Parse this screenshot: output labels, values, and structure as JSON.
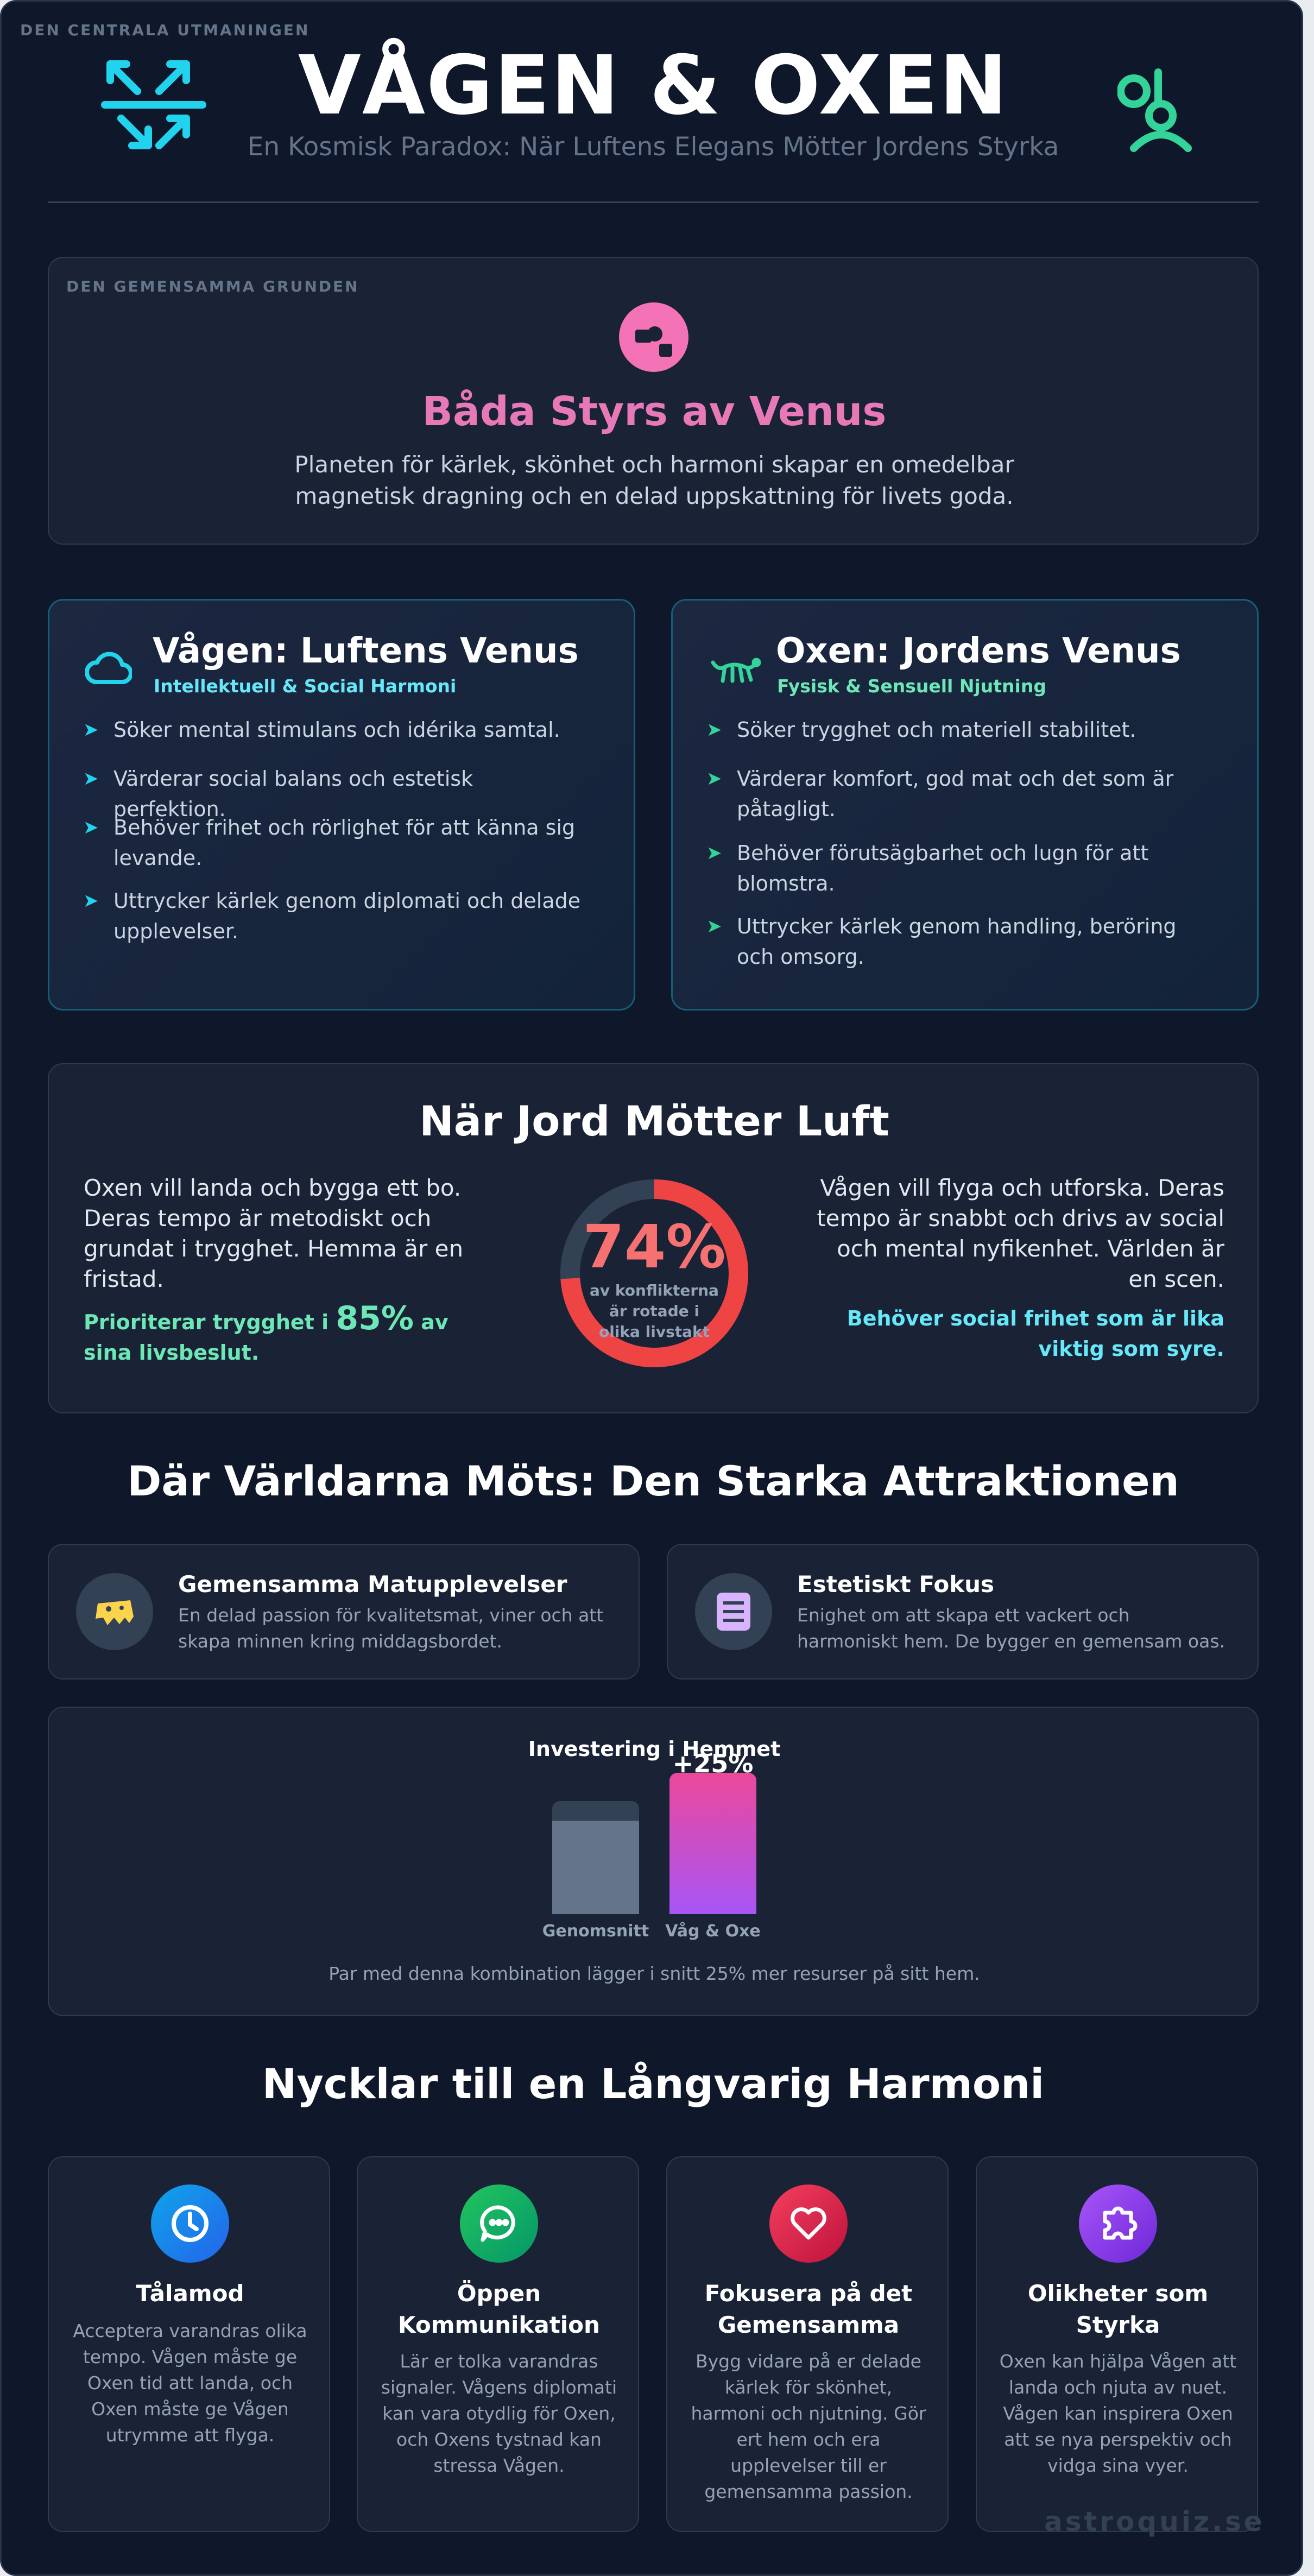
{
  "header": {
    "corner_label": "DEN CENTRALA UTMANINGEN",
    "title": "VÅGEN & OXEN",
    "subtitle": "En Kosmisk Paradox: När Luftens Elegans Mötter Jordens Styrka",
    "left_icon": "air-arrows-icon",
    "right_icon": "venus-ox-icon"
  },
  "common_ground": {
    "label": "DEN GEMENSAMMA GRUNDEN",
    "icon": "venus-icon",
    "title": "Båda Styrs av Venus",
    "text": "Planeten för kärlek, skönhet och harmoni skapar en omedelbar magnetisk dragning och en delad uppskattning för livets goda."
  },
  "libra": {
    "icon": "cloud-icon",
    "name": "Vågen: Luftens Venus",
    "sub": "Intellektuell & Social Harmoni",
    "bullets": [
      "Söker mental stimulans och idérika samtal.",
      "Värderar social balans och estetisk perfektion.",
      "Behöver frihet och rörlighet för att känna sig levande.",
      "Uttrycker kärlek genom diplomati och delade upplevelser."
    ]
  },
  "taurus": {
    "icon": "ox-icon",
    "name": "Oxen: Jordens Venus",
    "sub": "Fysisk & Sensuell Njutning",
    "bullets": [
      "Söker trygghet och materiell stabilitet.",
      "Värderar komfort, god mat och det som är påtagligt.",
      "Behöver förutsägbarhet och lugn för att blomstra.",
      "Uttrycker kärlek genom handling, beröring och omsorg."
    ]
  },
  "conflict": {
    "title": "När Jord Mötter Luft",
    "left_text": "Oxen vill landa och bygga ett bo. Deras tempo är metodiskt och grundat i trygghet. Hemma är en fristad.",
    "left_accent_pre": "Prioriterar trygghet i",
    "left_accent_num": "85%",
    "left_accent_post": "av sina livsbeslut.",
    "donut_value": "74%",
    "donut_fraction": 0.74,
    "donut_label": "av konflikterna är rotade i olika livstakt",
    "right_text": "Vågen vill flyga och utforska. Deras tempo är snabbt och drivs av social och mental nyfikenhet. Världen är en scen.",
    "right_accent": "Behöver social frihet som är lika viktig som syre.",
    "colors": {
      "track": "#334155",
      "value": "#ef4444"
    }
  },
  "attraction": {
    "title": "Där Världarna Möts: Den Starka Attraktionen",
    "features": [
      {
        "icon": "cheese-icon",
        "title": "Gemensamma Matupplevelser",
        "text": "En delad passion för kvalitetsmat, viner och att skapa minnen kring middagsbordet."
      },
      {
        "icon": "document-icon",
        "title": "Estetiskt Fokus",
        "text": "Enighet om att skapa ett vackert och harmoniskt hem. De bygger en gemensam oas."
      }
    ]
  },
  "chart_data": {
    "type": "bar",
    "title": "Investering i Hemmet",
    "categories": [
      "Genomsnitt",
      "Våg & Oxe"
    ],
    "values": [
      100,
      125
    ],
    "annotation": "+25%",
    "caption": "Par med denna kombination lägger i snitt 25% mer resurser på sitt hem.",
    "colors": [
      "#64748b",
      "#d946ef"
    ]
  },
  "keys": {
    "title": "Nycklar till en Långvarig Harmoni",
    "items": [
      {
        "icon": "clock-icon",
        "title": "Tålamod",
        "text": "Acceptera varandras olika tempo. Vågen måste ge Oxen tid att landa, och Oxen måste ge Vågen utrymme att flyga.",
        "color": "#0ea5e9"
      },
      {
        "icon": "chat-icon",
        "title": "Öppen Kommunikation",
        "text": "Lär er tolka varandras signaler. Vågens diplomati kan vara otydlig för Oxen, och Oxens tystnad kan stressa Vågen.",
        "color": "#16a34a"
      },
      {
        "icon": "heart-icon",
        "title": "Fokusera på det Gemensamma",
        "text": "Bygg vidare på er delade kärlek för skönhet, harmoni och njutning. Gör ert hem och era upplevelser till er gemensamma passion.",
        "color": "#e11d48"
      },
      {
        "icon": "puzzle-icon",
        "title": "Olikheter som Styrka",
        "text": "Oxen kan hjälpa Vågen att landa och njuta av nuet. Vågen kan inspirera Oxen att se nya perspektiv och vidga sina vyer.",
        "color": "#8b5cf6"
      }
    ]
  },
  "footer": {
    "brand": "astroquiz.se"
  }
}
